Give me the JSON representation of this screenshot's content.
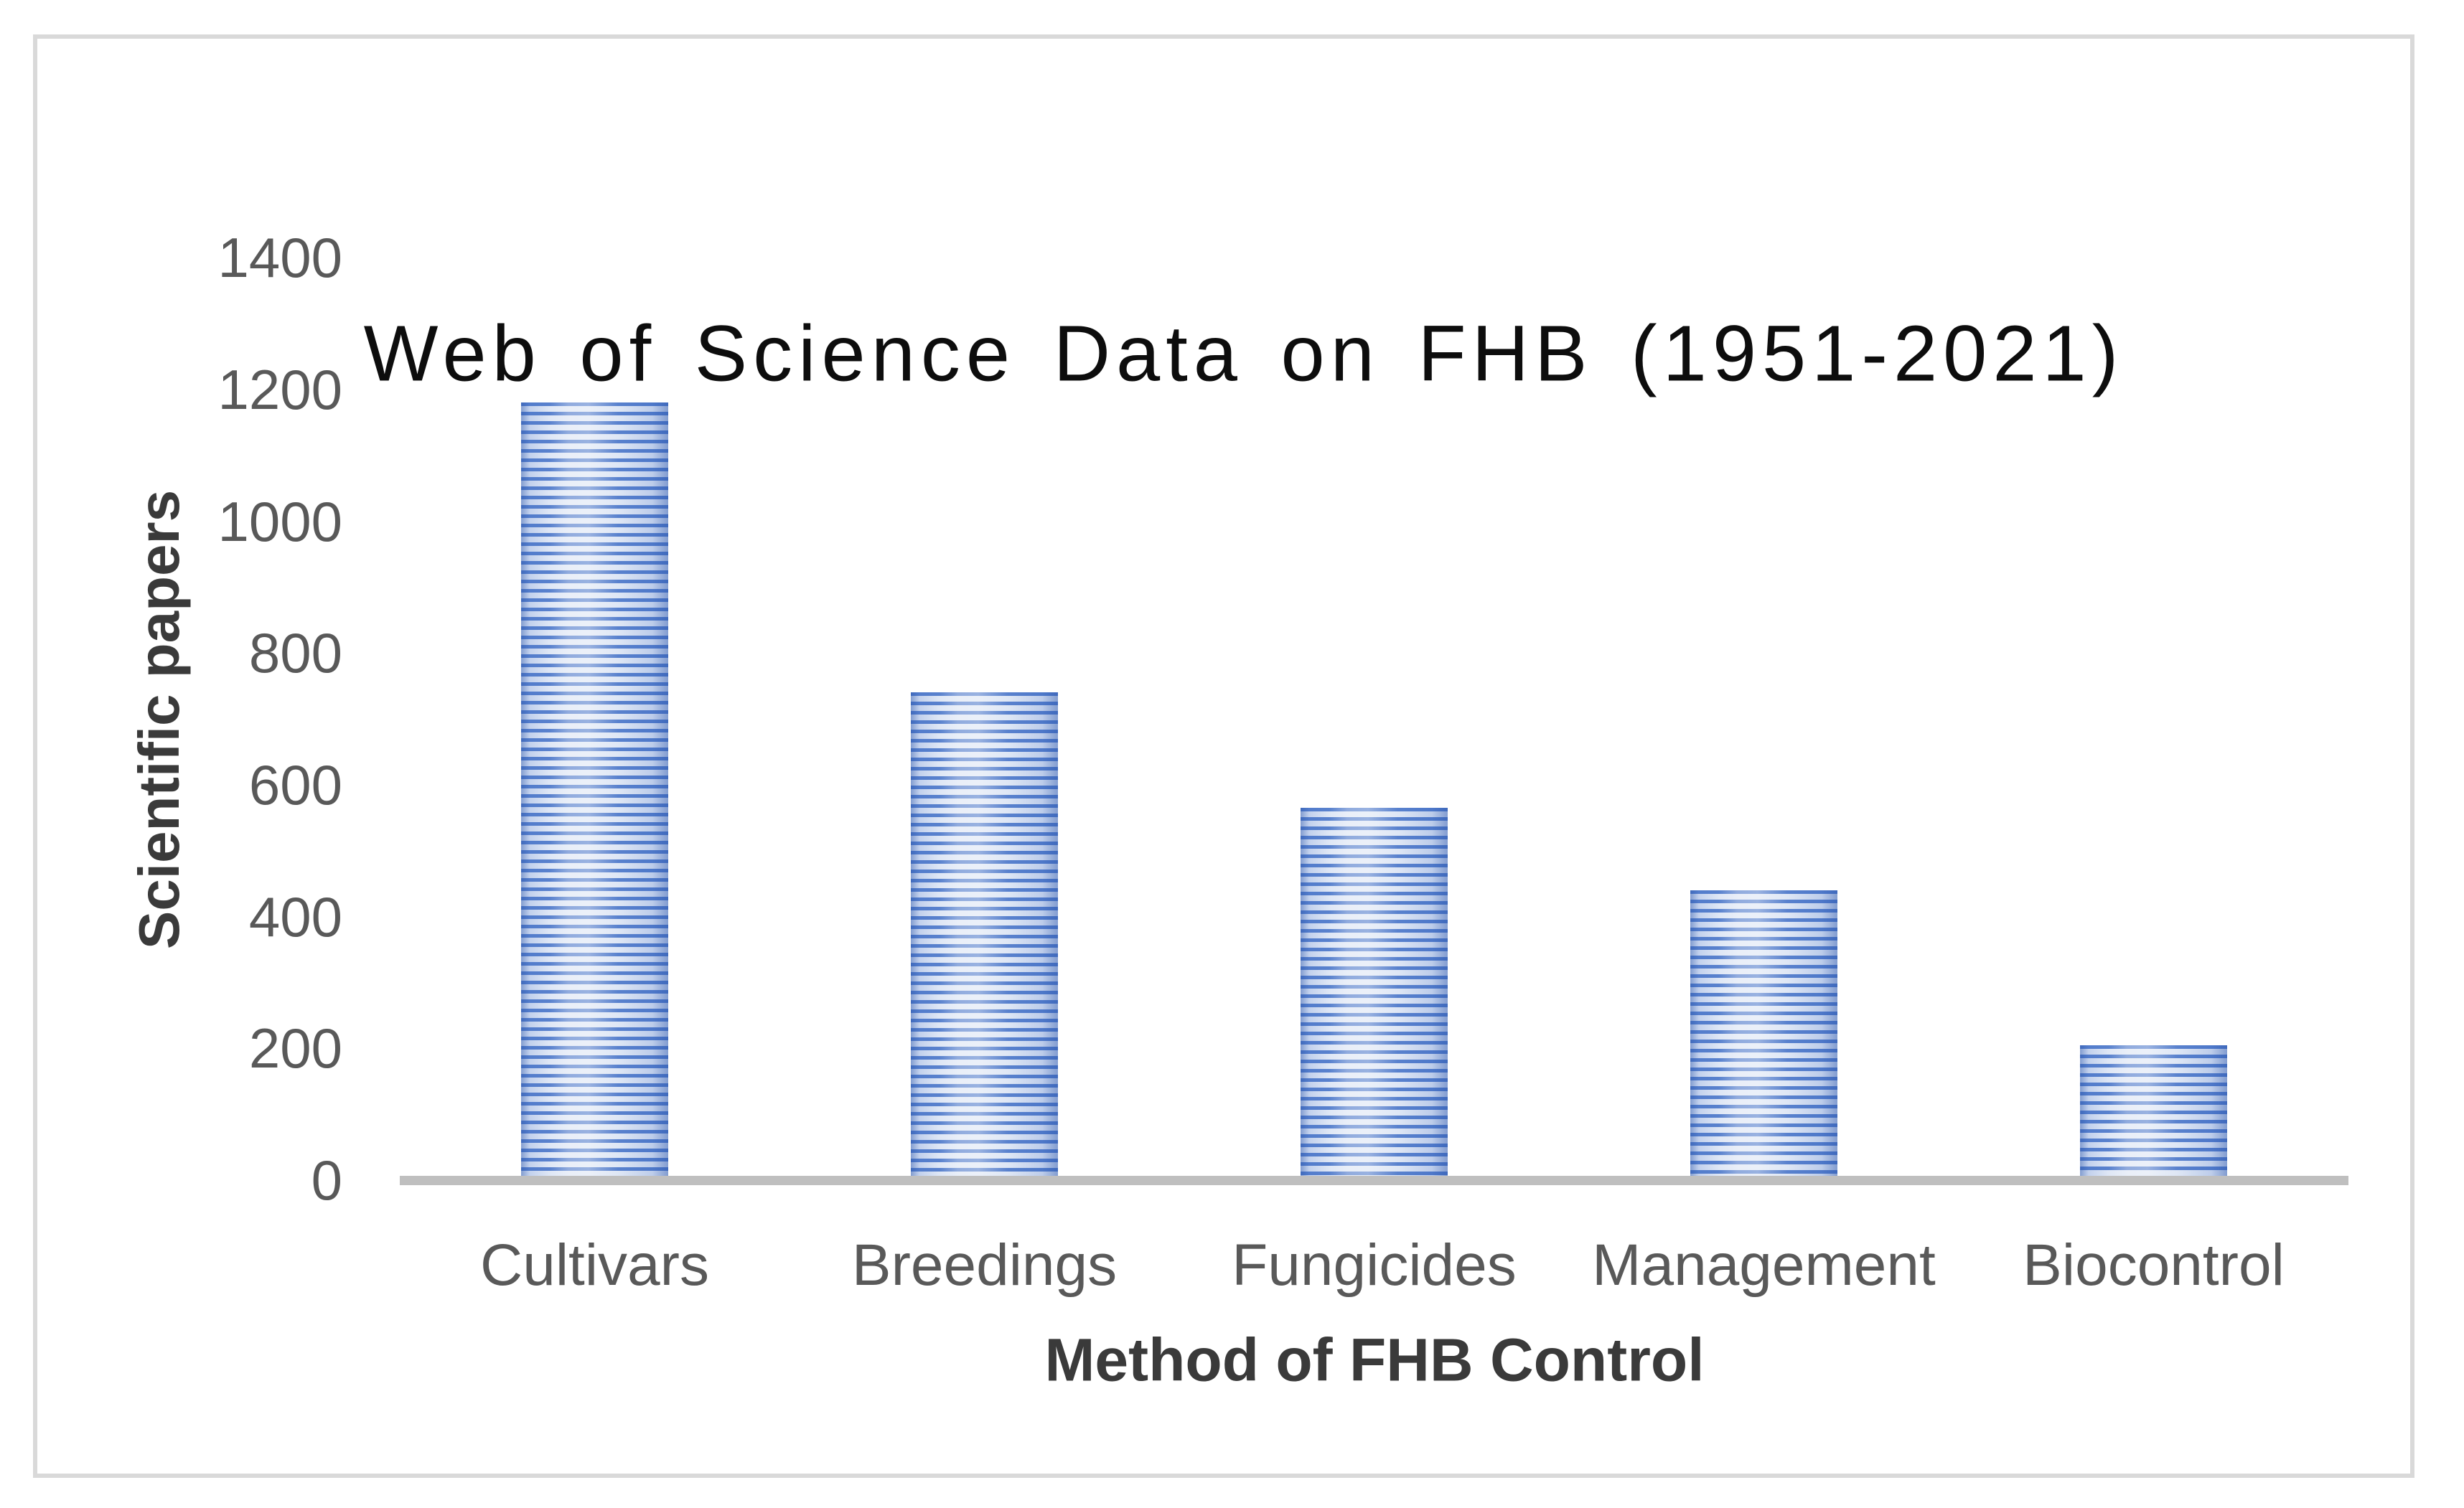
{
  "chart_data": {
    "type": "bar",
    "title": "Web of Science Data on FHB (1951-2021)",
    "xlabel": "Method of FHB Control",
    "ylabel": "Scientific papers",
    "categories": [
      "Cultivars",
      "Breedings",
      "Fungicides",
      "Management",
      "Biocontrol"
    ],
    "values": [
      1180,
      740,
      565,
      440,
      205
    ],
    "ylim": [
      0,
      1400
    ],
    "ytick_step": 200,
    "yticks": [
      1400,
      1200,
      1000,
      800,
      600,
      400,
      200,
      0
    ],
    "grid": false,
    "legend": null,
    "colors": {
      "bar_stripe_dark": "#4673c8",
      "bar_stripe_light": "#dbe4f4",
      "axis_line": "#bfbfbf",
      "tick_label": "#595959",
      "axis_title": "#3a3a3a",
      "title": "#0d0d0d",
      "figure_border": "#d9d9d9"
    }
  }
}
